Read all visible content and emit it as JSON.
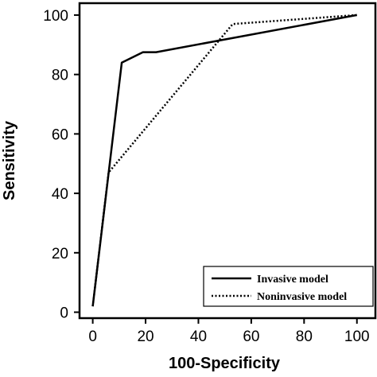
{
  "chart_data": {
    "type": "line",
    "title": "",
    "xlabel": "100-Specificity",
    "ylabel": "Sensitivity",
    "xlim": [
      -5,
      107
    ],
    "ylim": [
      -2,
      104
    ],
    "xticks": [
      "0",
      "20",
      "40",
      "60",
      "80",
      "100"
    ],
    "yticks": [
      "0",
      "20",
      "40",
      "60",
      "80",
      "100"
    ],
    "grid": false,
    "legend_position": "bottom-right",
    "series": [
      {
        "name": "Invasive model",
        "style": "solid",
        "color": "#000000",
        "x": [
          0,
          11,
          19,
          24,
          100
        ],
        "y": [
          2,
          84,
          87.5,
          87.5,
          100
        ]
      },
      {
        "name": "Noninvasive model",
        "style": "dotted",
        "color": "#000000",
        "x": [
          0,
          6,
          53,
          100
        ],
        "y": [
          2,
          47,
          97,
          100
        ]
      }
    ]
  }
}
